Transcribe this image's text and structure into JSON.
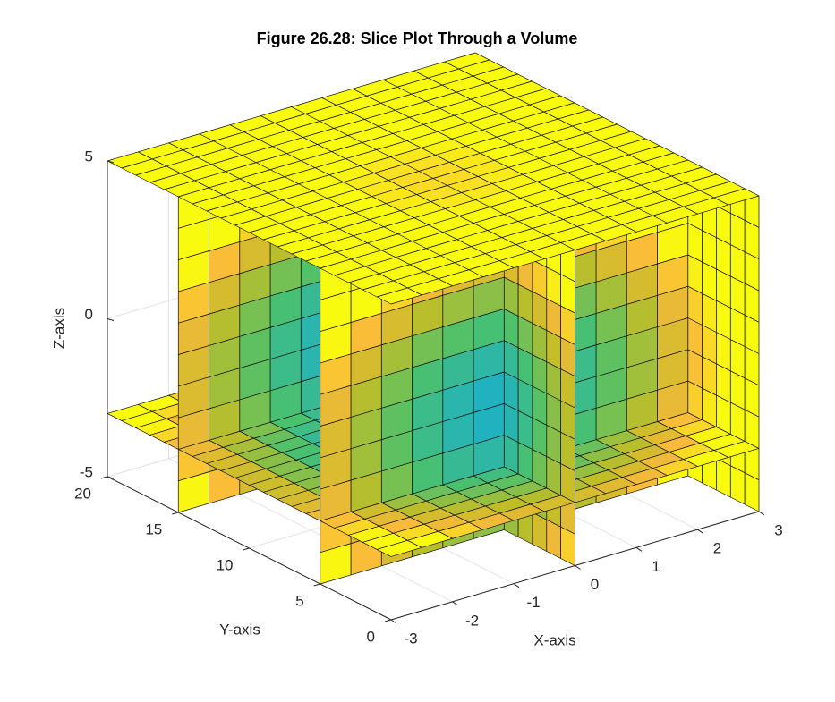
{
  "chart_data": {
    "type": "slice3d",
    "title": "Figure 26.28: Slice Plot Through a Volume",
    "x_label": "X-axis",
    "y_label": "Y-axis",
    "z_label": "Z-axis",
    "xlim": [
      -3,
      3
    ],
    "ylim": [
      0,
      20
    ],
    "zlim": [
      -5,
      5
    ],
    "xticks": [
      -3,
      -2,
      -1,
      0,
      1,
      2,
      3
    ],
    "yticks": [
      0,
      5,
      10,
      15,
      20
    ],
    "zticks": [
      -5,
      0,
      5
    ],
    "grid": true,
    "slices": {
      "x": [
        0,
        3
      ],
      "y": [
        5,
        15
      ],
      "z": [
        -3,
        5
      ]
    }
  }
}
